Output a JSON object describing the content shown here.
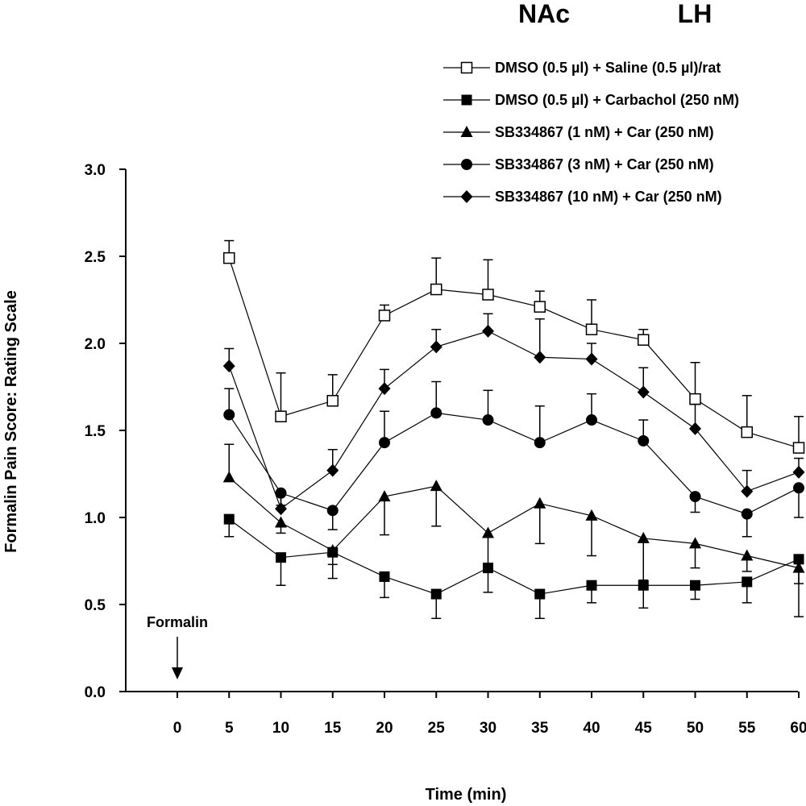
{
  "header": {
    "left": "NAc",
    "right": "LH"
  },
  "chart_data": {
    "type": "line",
    "xlabel": "Time (min)",
    "ylabel": "Formalin Pain Score: Rating Scale",
    "x_ticks": [
      0,
      5,
      10,
      15,
      20,
      25,
      30,
      35,
      40,
      45,
      50,
      55,
      60
    ],
    "y_ticks": [
      "0.0",
      "0.5",
      "1.0",
      "1.5",
      "2.0",
      "2.5",
      "3.0"
    ],
    "xlim": [
      -5,
      60
    ],
    "ylim": [
      0,
      3
    ],
    "annotation": {
      "text": "Formalin",
      "x": 0
    },
    "legend_position": "top-right",
    "series": [
      {
        "name": "DMSO (0.5 µl) + Saline (0.5 µl)/rat",
        "marker": "square-open",
        "x": [
          5,
          10,
          15,
          20,
          25,
          30,
          35,
          40,
          45,
          50,
          55,
          60
        ],
        "y": [
          2.49,
          1.58,
          1.67,
          2.16,
          2.31,
          2.28,
          2.21,
          2.08,
          2.02,
          1.68,
          1.49,
          1.4
        ],
        "err": [
          0.1,
          0.25,
          0.15,
          0.06,
          0.18,
          0.2,
          0.09,
          0.17,
          0.06,
          0.21,
          0.21,
          0.18
        ]
      },
      {
        "name": "DMSO (0.5 µl) + Carbachol (250 nM)",
        "marker": "square-filled",
        "x": [
          5,
          10,
          15,
          20,
          25,
          30,
          35,
          40,
          45,
          50,
          55,
          60
        ],
        "y": [
          0.99,
          0.77,
          0.8,
          0.66,
          0.56,
          0.71,
          0.56,
          0.61,
          0.61,
          0.61,
          0.63,
          0.76
        ],
        "err": [
          0.1,
          0.16,
          0.15,
          0.12,
          0.14,
          0.14,
          0.14,
          0.1,
          0.13,
          0.08,
          0.12,
          0.14
        ]
      },
      {
        "name": "SB334867 (1 nM) + Car (250 nM)",
        "marker": "triangle-filled",
        "x": [
          5,
          10,
          15,
          20,
          25,
          30,
          35,
          40,
          45,
          50,
          55,
          60
        ],
        "y": [
          1.23,
          0.97,
          0.81,
          1.12,
          1.18,
          0.91,
          1.08,
          1.01,
          0.88,
          0.85,
          0.78,
          0.71
        ],
        "err": [
          0.19,
          0.06,
          0.08,
          0.22,
          0.23,
          0.2,
          0.23,
          0.23,
          0.24,
          0.14,
          0.09,
          0.28
        ]
      },
      {
        "name": "SB334867 (3 nM) + Car (250 nM)",
        "marker": "circle-filled",
        "x": [
          5,
          10,
          15,
          20,
          25,
          30,
          35,
          40,
          45,
          50,
          55,
          60
        ],
        "y": [
          1.59,
          1.14,
          1.04,
          1.43,
          1.6,
          1.56,
          1.43,
          1.56,
          1.44,
          1.12,
          1.02,
          1.17
        ],
        "err": [
          0.15,
          0.07,
          0.11,
          0.18,
          0.18,
          0.17,
          0.21,
          0.15,
          0.12,
          0.09,
          0.13,
          0.17
        ]
      },
      {
        "name": "SB334867 (10 nM) + Car (250 nM)",
        "marker": "diamond-filled",
        "x": [
          5,
          10,
          15,
          20,
          25,
          30,
          35,
          40,
          45,
          50,
          55,
          60
        ],
        "y": [
          1.87,
          1.05,
          1.27,
          1.74,
          1.98,
          2.07,
          1.92,
          1.91,
          1.72,
          1.51,
          1.15,
          1.26
        ],
        "err": [
          0.1,
          0.1,
          0.12,
          0.11,
          0.1,
          0.1,
          0.22,
          0.09,
          0.14,
          0.14,
          0.12,
          0.08
        ]
      }
    ]
  }
}
